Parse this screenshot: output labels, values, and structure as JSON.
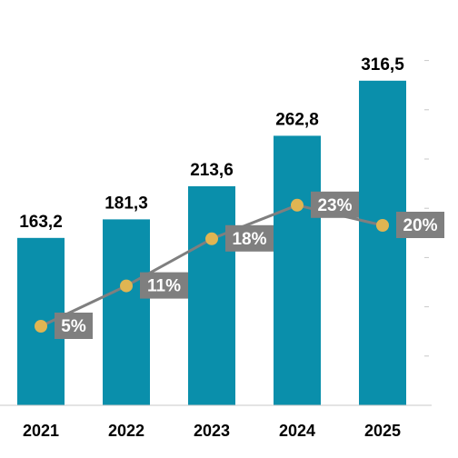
{
  "chart_data": {
    "type": "bar",
    "categories": [
      "2021",
      "2022",
      "2023",
      "2024",
      "2025"
    ],
    "series": [
      {
        "type": "bar",
        "values": [
          163.2,
          181.3,
          213.6,
          262.8,
          316.5
        ],
        "labels": [
          "163,2",
          "181,3",
          "213,6",
          "262,8",
          "316,5"
        ]
      },
      {
        "type": "line",
        "values": [
          5,
          11,
          18,
          23,
          20
        ],
        "labels": [
          "5%",
          "11%",
          "18%",
          "23%",
          "20%"
        ]
      }
    ],
    "y_bar_range": [
      0,
      350
    ],
    "y_line_range": [
      0,
      30
    ],
    "grid": false,
    "colors": {
      "bar": "#0a8fab",
      "line": "#7f7f7f",
      "marker": "#e0b552",
      "pct_box": "#7f7f7f",
      "axis": "#c8c8c8"
    }
  }
}
